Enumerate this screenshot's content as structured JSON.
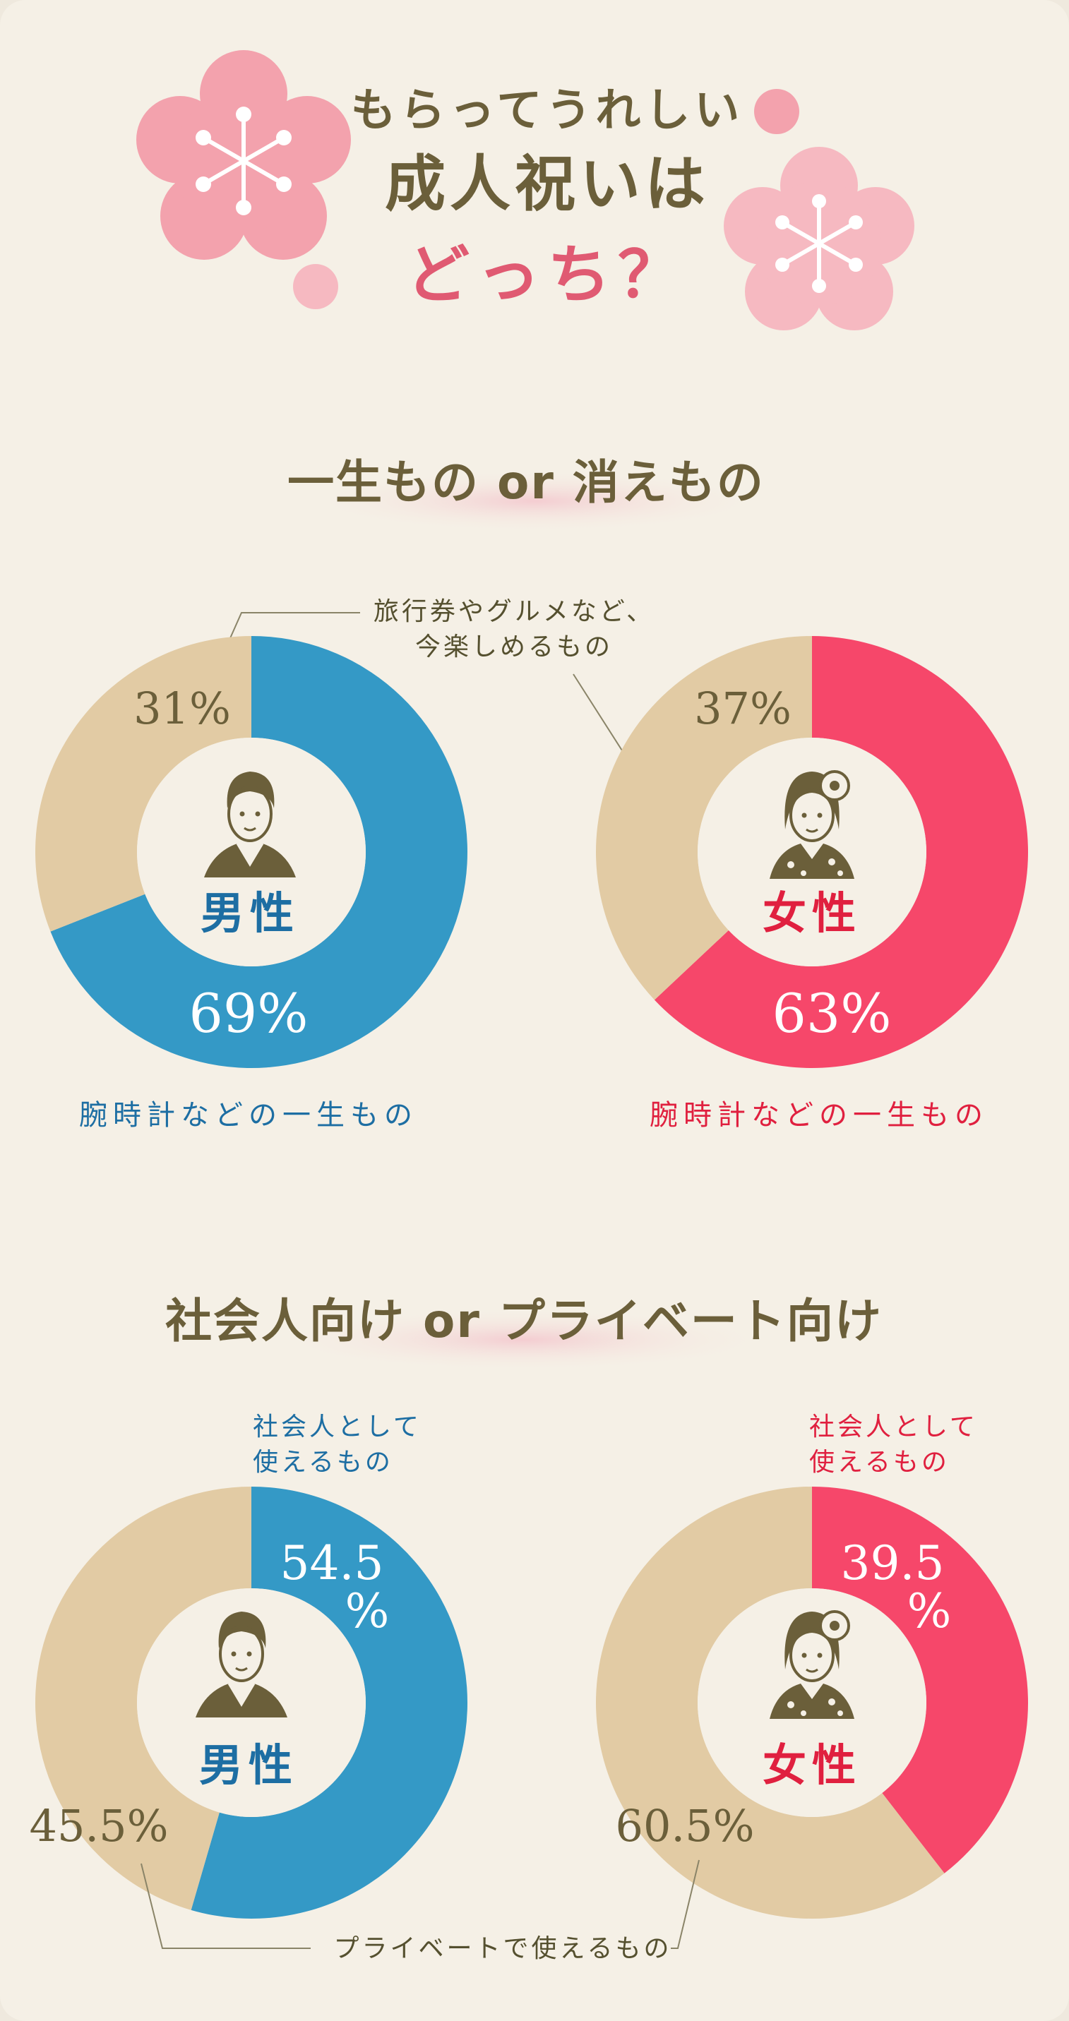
{
  "header": {
    "line1": "もらってうれしい",
    "line2": "成人祝いは",
    "line3": "どっち？"
  },
  "section1": {
    "title": "一生もの or 消えもの",
    "note_line1": "旅行券やグルメなど、",
    "note_line2": "今楽しめるもの",
    "male": {
      "label": "男性",
      "caption": "腕時計などの一生もの",
      "main_pct": "69%",
      "other_pct": "31%"
    },
    "female": {
      "label": "女性",
      "caption": "腕時計などの一生もの",
      "main_pct": "63%",
      "other_pct": "37%"
    }
  },
  "section2": {
    "title": "社会人向け or プライベート向け",
    "male": {
      "label": "男性",
      "caption_line1": "社会人として",
      "caption_line2": "使えるもの",
      "main_pct_num": "54.5",
      "main_pct_unit": "%",
      "other_pct": "45.5%"
    },
    "female": {
      "label": "女性",
      "caption_line1": "社会人として",
      "caption_line2": "使えるもの",
      "main_pct_num": "39.5",
      "main_pct_unit": "%",
      "other_pct": "60.5%"
    },
    "bottom_note": "プライベートで使えるもの"
  },
  "colors": {
    "male": "#3499c6",
    "female": "#f6476a",
    "other": "#e2cba4",
    "text": "#6b5f3a",
    "flower": "#f3a2ad",
    "flower_light": "#f6b9c1"
  },
  "chart_data": [
    {
      "type": "pie",
      "title": "一生もの or 消えもの",
      "group": "男性",
      "categories": [
        "腕時計などの一生もの",
        "旅行券やグルメなど、今楽しめるもの"
      ],
      "values": [
        69,
        31
      ]
    },
    {
      "type": "pie",
      "title": "一生もの or 消えもの",
      "group": "女性",
      "categories": [
        "腕時計などの一生もの",
        "旅行券やグルメなど、今楽しめるもの"
      ],
      "values": [
        63,
        37
      ]
    },
    {
      "type": "pie",
      "title": "社会人向け or プライベート向け",
      "group": "男性",
      "categories": [
        "社会人として使えるもの",
        "プライベートで使えるもの"
      ],
      "values": [
        54.5,
        45.5
      ]
    },
    {
      "type": "pie",
      "title": "社会人向け or プライベート向け",
      "group": "女性",
      "categories": [
        "社会人として使えるもの",
        "プライベートで使えるもの"
      ],
      "values": [
        39.5,
        60.5
      ]
    }
  ]
}
